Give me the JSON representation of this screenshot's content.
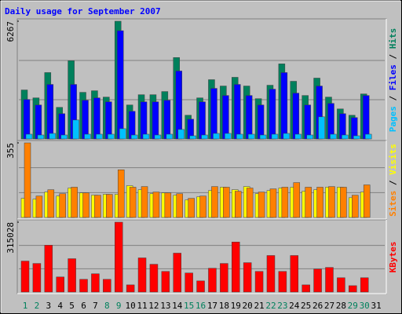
{
  "chart_data": [
    {
      "type": "bar",
      "title": "Daily usage for September 2007",
      "ylim": [
        0,
        6267
      ],
      "yticks": [
        6267
      ],
      "grid": true,
      "legend_separator": " / ",
      "series": [
        {
          "name": "Hits",
          "color": "#00805c",
          "values": [
            2608,
            2187,
            3533,
            1682,
            4164,
            2482,
            2566,
            2229,
            6267,
            1809,
            2355,
            2355,
            2524,
            4332,
            1262,
            2187,
            3155,
            2818,
            3281,
            2818,
            2145,
            2860,
            3996,
            3070,
            2313,
            3239,
            2229,
            1598,
            1262,
            2397,
            0
          ]
        },
        {
          "name": "Files",
          "color": "#0000ff",
          "values": [
            2103,
            1809,
            2902,
            1346,
            2902,
            2061,
            2187,
            1977,
            5762,
            1472,
            1977,
            1977,
            2061,
            3617,
            1052,
            1977,
            2692,
            2313,
            2902,
            2313,
            1809,
            2650,
            3533,
            2440,
            1809,
            2818,
            1893,
            1346,
            1136,
            2313,
            0
          ]
        },
        {
          "name": "Pages",
          "color": "#00c0ff",
          "values": [
            252,
            210,
            294,
            210,
            1009,
            252,
            252,
            252,
            547,
            210,
            252,
            210,
            252,
            505,
            168,
            210,
            294,
            294,
            252,
            252,
            210,
            252,
            294,
            252,
            210,
            1178,
            252,
            210,
            168,
            252,
            0
          ]
        }
      ]
    },
    {
      "type": "bar",
      "ylim": [
        0,
        355
      ],
      "yticks": [
        355
      ],
      "grid": true,
      "legend_separator": " / ",
      "series": [
        {
          "name": "Visits",
          "color": "#ffff00",
          "values": [
            91,
            87,
            121,
            102,
            140,
            117,
            106,
            110,
            110,
            151,
            132,
            113,
            117,
            106,
            83,
            98,
            128,
            144,
            132,
            147,
            113,
            128,
            140,
            144,
            125,
            132,
            144,
            144,
            94,
            121,
            0
          ]
        },
        {
          "name": "Sites",
          "color": "#ff8000",
          "values": [
            355,
            102,
            132,
            113,
            144,
            117,
            106,
            110,
            227,
            144,
            147,
            121,
            117,
            113,
            91,
            102,
            147,
            144,
            125,
            140,
            121,
            136,
            144,
            166,
            144,
            144,
            147,
            144,
            106,
            155,
            0
          ]
        }
      ]
    },
    {
      "type": "bar",
      "ylim": [
        0,
        315028
      ],
      "yticks": [
        315028
      ],
      "grid": true,
      "legend_separator": " / ",
      "categories": [
        "1",
        "2",
        "3",
        "4",
        "5",
        "6",
        "7",
        "8",
        "9",
        "10",
        "11",
        "12",
        "13",
        "14",
        "15",
        "16",
        "17",
        "18",
        "19",
        "20",
        "21",
        "22",
        "23",
        "24",
        "25",
        "26",
        "27",
        "28",
        "29",
        "30",
        "31"
      ],
      "category_colors": [
        "#00805c",
        "#00805c",
        "#000000",
        "#000000",
        "#000000",
        "#000000",
        "#000000",
        "#00805c",
        "#00805c",
        "#000000",
        "#000000",
        "#000000",
        "#000000",
        "#000000",
        "#00805c",
        "#00805c",
        "#000000",
        "#000000",
        "#000000",
        "#000000",
        "#000000",
        "#00805c",
        "#00805c",
        "#000000",
        "#000000",
        "#000000",
        "#000000",
        "#000000",
        "#00805c",
        "#00805c",
        "#000000"
      ],
      "series": [
        {
          "name": "KBytes",
          "color": "#ff0000",
          "values": [
            139614,
            128875,
            211212,
            68017,
            150354,
            57278,
            82336,
            57278,
            315028,
            32219,
            153934,
            125295,
            93076,
            175413,
            85917,
            50118,
            107396,
            128875,
            225532,
            132455,
            93076,
            164674,
            93076,
            164674,
            32219,
            103816,
            110976,
            64437,
            28639,
            64437,
            0
          ]
        }
      ]
    }
  ]
}
